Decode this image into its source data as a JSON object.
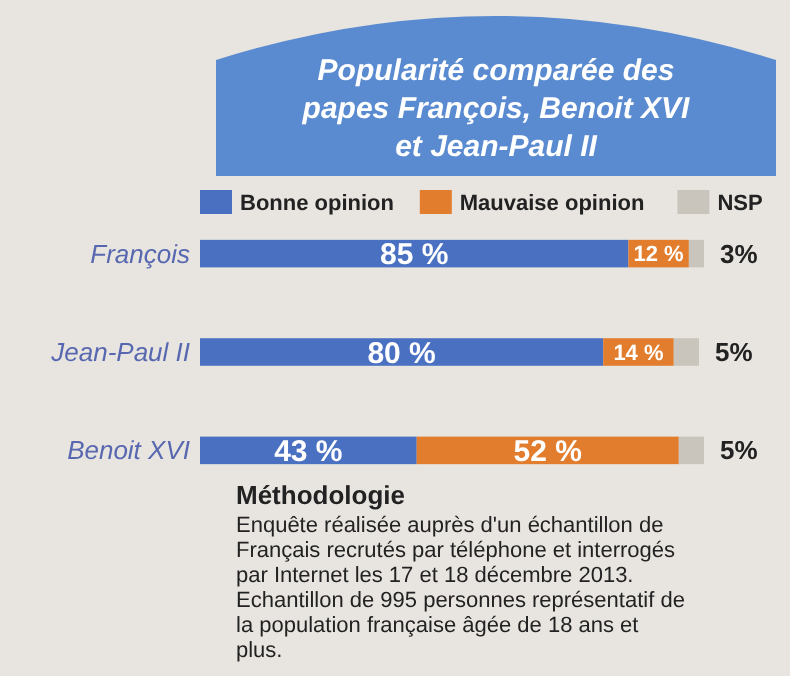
{
  "chart_data": {
    "type": "bar",
    "orientation": "horizontal",
    "stacked": true,
    "title": "Popularité comparée des papes François, Benoit XVI et Jean-Paul II",
    "categories": [
      "François",
      "Jean-Paul II",
      "Benoit XVI"
    ],
    "legend": "top",
    "series": [
      {
        "name": "Bonne opinion",
        "color": "#4a70c2",
        "values": [
          85,
          80,
          43
        ],
        "value_labels": [
          "85 %",
          "80 %",
          "43 %"
        ]
      },
      {
        "name": "Mauvaise opinion",
        "color": "#e27d2e",
        "values": [
          12,
          14,
          52
        ],
        "value_labels": [
          "12 %",
          "14 %",
          "52 %"
        ]
      },
      {
        "name": "NSP",
        "color": "#c9c5bd",
        "values": [
          3,
          5,
          5
        ],
        "value_labels": [
          "3%",
          "5%",
          "5%"
        ]
      }
    ],
    "annotations": [
      "Méthodologie",
      "Enquête réalisée auprès d'un échantillon de Français recrutés par téléphone et interrogés par Internet les 17 et 18 décembre 2013. Echantillon de 995 personnes représentatif de la population française âgée de 18 ans et plus."
    ]
  }
}
